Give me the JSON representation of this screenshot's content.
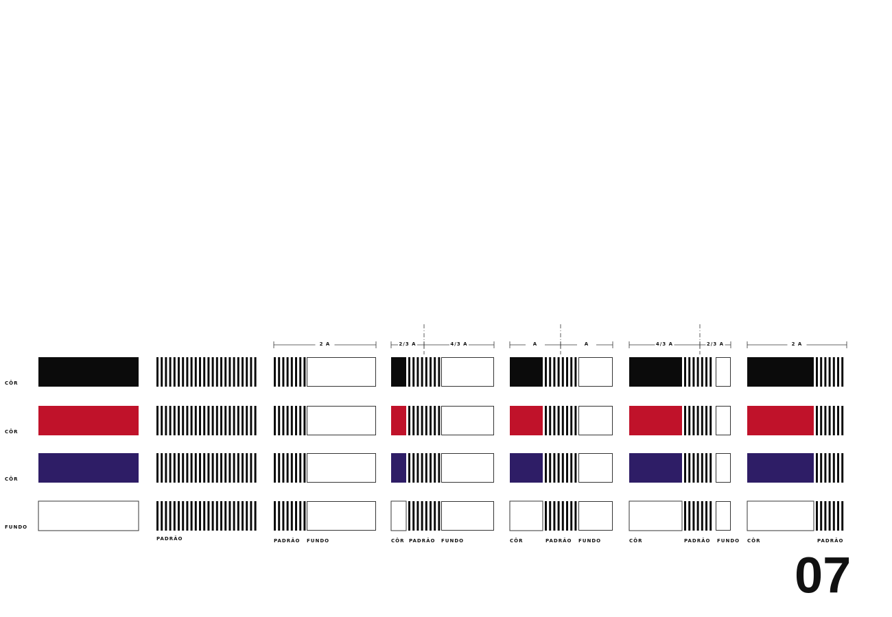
{
  "rows": [
    {
      "label": "CÔR",
      "color": "#0b0b0b"
    },
    {
      "label": "CÔR",
      "color": "#c0122a"
    },
    {
      "label": "CÔR",
      "color": "#2e1d66"
    },
    {
      "label": "FUNDO",
      "color": "#ffffff"
    }
  ],
  "columns": [
    {
      "labels": [],
      "dimensions": []
    },
    {
      "labels": [
        "PADRÃO"
      ],
      "dimensions": []
    },
    {
      "labels": [
        "PADRÃO",
        "FUNDO"
      ],
      "dimensions": [
        "2 A"
      ]
    },
    {
      "labels": [
        "CÔR",
        "PADRÃO",
        "FUNDO"
      ],
      "dimensions": [
        "2/3 A",
        "4/3 A"
      ]
    },
    {
      "labels": [
        "CÔR",
        "PADRÃO",
        "FUNDO"
      ],
      "dimensions": [
        "A",
        "A"
      ]
    },
    {
      "labels": [
        "CÔR",
        "PADRÃO",
        "FUNDO"
      ],
      "dimensions": [
        "4/3 A",
        "2/3 A"
      ]
    },
    {
      "labels": [
        "CÔR",
        "PADRÃO"
      ],
      "dimensions": [
        "2 A"
      ]
    }
  ],
  "plate_number": "07"
}
